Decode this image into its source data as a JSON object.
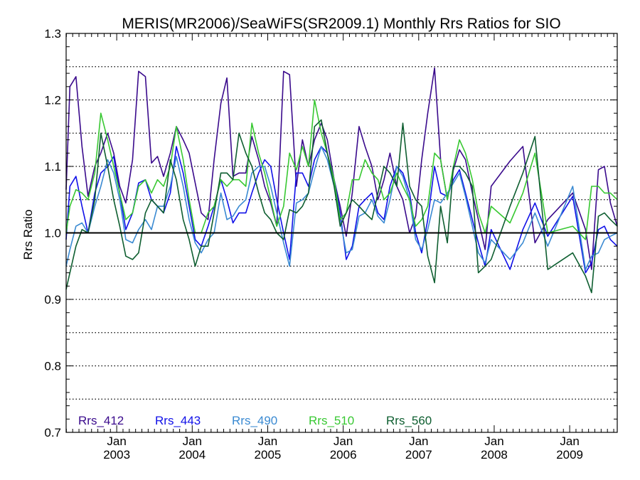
{
  "chart_data": {
    "type": "line",
    "title": "MERIS(MR2006)/SeaWiFS(SR2009.1) Monthly Rrs Ratios for SIO",
    "xlabel": "",
    "ylabel": "Rrs Ratio",
    "xlim": [
      2002.33,
      2009.63
    ],
    "ylim": [
      0.7,
      1.3
    ],
    "y_ticks": [
      "0.7",
      "0.8",
      "0.9",
      "1.0",
      "1.1",
      "1.2",
      "1.3"
    ],
    "x_ticks": [
      {
        "month": "Jan",
        "year": "2003",
        "x": 2003.0
      },
      {
        "month": "Jan",
        "year": "2004",
        "x": 2004.0
      },
      {
        "month": "Jan",
        "year": "2005",
        "x": 2005.0
      },
      {
        "month": "Jan",
        "year": "2006",
        "x": 2006.0
      },
      {
        "month": "Jan",
        "year": "2007",
        "x": 2007.0
      },
      {
        "month": "Jan",
        "year": "2008",
        "x": 2008.0
      },
      {
        "month": "Jan",
        "year": "2009",
        "x": 2009.0
      }
    ],
    "grid": "dotted horizontal lines every 0.05",
    "reference_line": 1.0,
    "legend_placement": "bottom-left",
    "series": [
      {
        "name": "Rrs_412",
        "color": "#3a0a8c",
        "x": [
          2002.33,
          2002.38,
          2002.46,
          2002.54,
          2002.62,
          2002.71,
          2002.79,
          2002.88,
          2002.96,
          2003.04,
          2003.12,
          2003.21,
          2003.29,
          2003.38,
          2003.46,
          2003.54,
          2003.62,
          2003.71,
          2003.79,
          2003.88,
          2003.96,
          2004.04,
          2004.12,
          2004.21,
          2004.29,
          2004.38,
          2004.46,
          2004.54,
          2004.62,
          2004.71,
          2004.79,
          2004.88,
          2004.96,
          2005.04,
          2005.12,
          2005.21,
          2005.29,
          2005.38,
          2005.46,
          2005.54,
          2005.62,
          2005.71,
          2005.79,
          2005.88,
          2005.96,
          2006.04,
          2006.12,
          2006.21,
          2006.29,
          2006.38,
          2006.46,
          2006.54,
          2006.62,
          2006.71,
          2006.79,
          2006.88,
          2006.96,
          2007.04,
          2007.12,
          2007.21,
          2007.29,
          2007.38,
          2007.46,
          2007.54,
          2007.62,
          2007.71,
          2007.79,
          2007.88,
          2007.96,
          2008.21,
          2008.38,
          2008.54,
          2008.71,
          2009.04,
          2009.21,
          2009.29,
          2009.38,
          2009.46,
          2009.54,
          2009.63
        ],
        "y": [
          1.065,
          1.22,
          1.235,
          1.13,
          1.055,
          1.1,
          1.12,
          1.15,
          1.12,
          1.07,
          1.045,
          1.11,
          1.243,
          1.235,
          1.105,
          1.115,
          1.085,
          1.12,
          1.16,
          1.14,
          1.12,
          1.075,
          1.03,
          1.02,
          1.11,
          1.195,
          1.233,
          1.085,
          1.09,
          1.09,
          1.145,
          1.11,
          1.07,
          1.045,
          1.01,
          1.243,
          1.238,
          1.07,
          1.14,
          1.1,
          1.14,
          1.165,
          1.14,
          1.08,
          1.04,
          0.995,
          1.06,
          1.16,
          1.13,
          1.1,
          1.05,
          1.08,
          1.12,
          1.07,
          1.05,
          1.0,
          1.025,
          1.11,
          1.18,
          1.248,
          1.11,
          1.05,
          1.095,
          1.125,
          1.11,
          1.06,
          1.02,
          0.975,
          1.07,
          1.108,
          1.13,
          0.985,
          1.02,
          1.06,
          1.005,
          0.945,
          1.095,
          1.1,
          1.045,
          1.01
        ]
      },
      {
        "name": "Rrs_443",
        "color": "#1010e8",
        "x": [
          2002.33,
          2002.38,
          2002.46,
          2002.54,
          2002.62,
          2002.71,
          2002.79,
          2002.88,
          2002.96,
          2003.04,
          2003.12,
          2003.21,
          2003.29,
          2003.38,
          2003.46,
          2003.54,
          2003.62,
          2003.71,
          2003.79,
          2003.88,
          2003.96,
          2004.04,
          2004.12,
          2004.21,
          2004.29,
          2004.38,
          2004.46,
          2004.54,
          2004.62,
          2004.71,
          2004.79,
          2004.88,
          2004.96,
          2005.04,
          2005.12,
          2005.21,
          2005.29,
          2005.38,
          2005.46,
          2005.54,
          2005.62,
          2005.71,
          2005.79,
          2005.88,
          2005.96,
          2006.04,
          2006.12,
          2006.21,
          2006.29,
          2006.38,
          2006.46,
          2006.54,
          2006.62,
          2006.71,
          2006.79,
          2006.88,
          2006.96,
          2007.04,
          2007.12,
          2007.21,
          2007.29,
          2007.38,
          2007.46,
          2007.54,
          2007.62,
          2007.71,
          2007.79,
          2007.88,
          2007.96,
          2008.21,
          2008.38,
          2008.54,
          2008.71,
          2009.04,
          2009.21,
          2009.29,
          2009.38,
          2009.46,
          2009.54,
          2009.63
        ],
        "y": [
          0.99,
          1.07,
          1.085,
          1.04,
          1.0,
          1.06,
          1.09,
          1.1,
          1.115,
          1.06,
          1.005,
          1.03,
          1.075,
          1.08,
          1.05,
          1.04,
          1.03,
          1.06,
          1.13,
          1.09,
          1.04,
          0.99,
          0.98,
          1.01,
          1.04,
          1.08,
          1.05,
          1.015,
          1.03,
          1.03,
          1.06,
          1.09,
          1.11,
          1.1,
          1.05,
          1.0,
          0.96,
          1.09,
          1.09,
          1.07,
          1.11,
          1.13,
          1.12,
          1.08,
          1.03,
          0.96,
          0.98,
          1.04,
          1.05,
          1.06,
          1.03,
          1.02,
          1.07,
          1.1,
          1.09,
          1.06,
          1.0,
          0.97,
          1.02,
          1.1,
          1.06,
          1.055,
          1.08,
          1.095,
          1.06,
          1.02,
          0.985,
          0.95,
          1.005,
          0.945,
          1.005,
          1.045,
          0.995,
          1.055,
          0.94,
          0.955,
          1.005,
          1.01,
          0.99,
          0.98
        ]
      },
      {
        "name": "Rrs_490",
        "color": "#3a8ad2",
        "x": [
          2002.33,
          2002.38,
          2002.46,
          2002.54,
          2002.62,
          2002.71,
          2002.79,
          2002.88,
          2002.96,
          2003.04,
          2003.12,
          2003.21,
          2003.29,
          2003.38,
          2003.46,
          2003.54,
          2003.62,
          2003.71,
          2003.79,
          2003.88,
          2003.96,
          2004.04,
          2004.12,
          2004.21,
          2004.29,
          2004.38,
          2004.46,
          2004.54,
          2004.62,
          2004.71,
          2004.79,
          2004.88,
          2004.96,
          2005.04,
          2005.12,
          2005.21,
          2005.29,
          2005.38,
          2005.46,
          2005.54,
          2005.62,
          2005.71,
          2005.79,
          2005.88,
          2005.96,
          2006.04,
          2006.12,
          2006.21,
          2006.29,
          2006.38,
          2006.46,
          2006.54,
          2006.62,
          2006.71,
          2006.79,
          2006.88,
          2006.96,
          2007.04,
          2007.12,
          2007.21,
          2007.29,
          2007.38,
          2007.46,
          2007.54,
          2007.62,
          2007.71,
          2007.79,
          2007.88,
          2007.96,
          2008.21,
          2008.38,
          2008.54,
          2008.71,
          2009.04,
          2009.21,
          2009.29,
          2009.38,
          2009.46,
          2009.54,
          2009.63
        ],
        "y": [
          0.95,
          0.975,
          1.01,
          1.015,
          1.0,
          1.04,
          1.07,
          1.11,
          1.09,
          1.05,
          0.99,
          0.985,
          1.005,
          1.02,
          1.005,
          1.04,
          1.04,
          1.07,
          1.115,
          1.07,
          1.02,
          0.985,
          0.97,
          0.99,
          1.0,
          1.06,
          1.02,
          1.025,
          1.04,
          1.05,
          1.09,
          1.1,
          1.1,
          1.07,
          1.03,
          0.985,
          0.95,
          1.045,
          1.05,
          1.06,
          1.095,
          1.13,
          1.11,
          1.07,
          1.02,
          0.97,
          0.975,
          1.025,
          1.03,
          1.05,
          1.025,
          1.015,
          1.05,
          1.1,
          1.085,
          1.05,
          0.99,
          0.975,
          1.005,
          1.05,
          1.045,
          1.06,
          1.075,
          1.09,
          1.055,
          1.01,
          0.97,
          0.955,
          0.99,
          0.96,
          0.985,
          1.03,
          0.98,
          1.07,
          0.945,
          0.965,
          0.97,
          0.99,
          0.995,
          1.0
        ]
      },
      {
        "name": "Rrs_510",
        "color": "#38c832",
        "x": [
          2002.33,
          2002.38,
          2002.46,
          2002.54,
          2002.62,
          2002.71,
          2002.79,
          2002.88,
          2002.96,
          2003.04,
          2003.12,
          2003.21,
          2003.29,
          2003.38,
          2003.46,
          2003.54,
          2003.62,
          2003.71,
          2003.79,
          2003.88,
          2003.96,
          2004.04,
          2004.12,
          2004.21,
          2004.29,
          2004.38,
          2004.46,
          2004.54,
          2004.62,
          2004.71,
          2004.79,
          2004.88,
          2004.96,
          2005.04,
          2005.12,
          2005.21,
          2005.29,
          2005.38,
          2005.46,
          2005.54,
          2005.62,
          2005.71,
          2005.79,
          2005.88,
          2005.96,
          2006.04,
          2006.12,
          2006.21,
          2006.29,
          2006.38,
          2006.46,
          2006.54,
          2006.62,
          2006.71,
          2006.79,
          2006.88,
          2006.96,
          2007.04,
          2007.12,
          2007.21,
          2007.29,
          2007.38,
          2007.46,
          2007.54,
          2007.62,
          2007.71,
          2007.79,
          2007.88,
          2007.96,
          2008.21,
          2008.38,
          2008.54,
          2008.71,
          2009.04,
          2009.21,
          2009.29,
          2009.38,
          2009.46,
          2009.54,
          2009.63
        ],
        "y": [
          1.0,
          1.04,
          1.065,
          1.06,
          1.05,
          1.09,
          1.18,
          1.14,
          1.1,
          1.06,
          1.02,
          1.03,
          1.07,
          1.08,
          1.06,
          1.08,
          1.07,
          1.1,
          1.16,
          1.11,
          1.05,
          1.0,
          1.0,
          1.03,
          1.04,
          1.08,
          1.07,
          1.08,
          1.08,
          1.07,
          1.165,
          1.12,
          1.09,
          1.05,
          1.01,
          1.04,
          1.12,
          1.095,
          1.13,
          1.1,
          1.2,
          1.15,
          1.12,
          1.08,
          1.02,
          1.03,
          1.08,
          1.08,
          1.11,
          1.09,
          1.08,
          1.05,
          1.06,
          1.09,
          1.07,
          1.05,
          1.01,
          1.02,
          1.04,
          1.12,
          1.11,
          1.05,
          1.1,
          1.14,
          1.12,
          1.08,
          1.03,
          1.0,
          1.04,
          1.015,
          1.06,
          1.12,
          1.0,
          1.01,
          0.99,
          1.07,
          1.07,
          1.06,
          1.06,
          1.05
        ]
      },
      {
        "name": "Rrs_560",
        "color": "#0e5e30",
        "x": [
          2002.33,
          2002.38,
          2002.46,
          2002.54,
          2002.62,
          2002.71,
          2002.79,
          2002.88,
          2002.96,
          2003.04,
          2003.12,
          2003.21,
          2003.29,
          2003.38,
          2003.46,
          2003.54,
          2003.62,
          2003.71,
          2003.79,
          2003.88,
          2003.96,
          2004.04,
          2004.12,
          2004.21,
          2004.29,
          2004.38,
          2004.46,
          2004.54,
          2004.62,
          2004.71,
          2004.79,
          2004.88,
          2004.96,
          2005.04,
          2005.12,
          2005.21,
          2005.29,
          2005.38,
          2005.46,
          2005.54,
          2005.62,
          2005.71,
          2005.79,
          2005.88,
          2005.96,
          2006.04,
          2006.12,
          2006.21,
          2006.29,
          2006.38,
          2006.46,
          2006.54,
          2006.62,
          2006.71,
          2006.79,
          2006.88,
          2006.96,
          2007.04,
          2007.12,
          2007.21,
          2007.29,
          2007.38,
          2007.46,
          2007.54,
          2007.62,
          2007.71,
          2007.79,
          2007.88,
          2007.96,
          2008.21,
          2008.38,
          2008.54,
          2008.71,
          2009.04,
          2009.21,
          2009.29,
          2009.38,
          2009.46,
          2009.54,
          2009.63
        ],
        "y": [
          0.915,
          0.94,
          0.98,
          1.005,
          1.0,
          1.05,
          1.15,
          1.1,
          1.05,
          1.01,
          0.965,
          0.96,
          0.97,
          1.03,
          1.05,
          1.04,
          1.03,
          1.11,
          1.08,
          1.02,
          0.99,
          0.95,
          0.98,
          0.98,
          1.03,
          1.09,
          1.09,
          1.08,
          1.15,
          1.12,
          1.1,
          1.06,
          1.03,
          1.02,
          1.0,
          0.99,
          1.035,
          1.03,
          1.04,
          1.06,
          1.16,
          1.17,
          1.12,
          1.07,
          1.01,
          1.03,
          1.05,
          1.04,
          1.03,
          1.02,
          1.06,
          1.1,
          1.09,
          1.07,
          1.165,
          1.07,
          1.05,
          1.04,
          0.965,
          0.925,
          1.04,
          0.985,
          1.1,
          1.1,
          1.09,
          1.07,
          0.94,
          0.95,
          0.96,
          1.04,
          1.09,
          1.145,
          0.945,
          0.97,
          0.935,
          0.91,
          1.025,
          1.03,
          1.02,
          1.01
        ]
      }
    ]
  }
}
